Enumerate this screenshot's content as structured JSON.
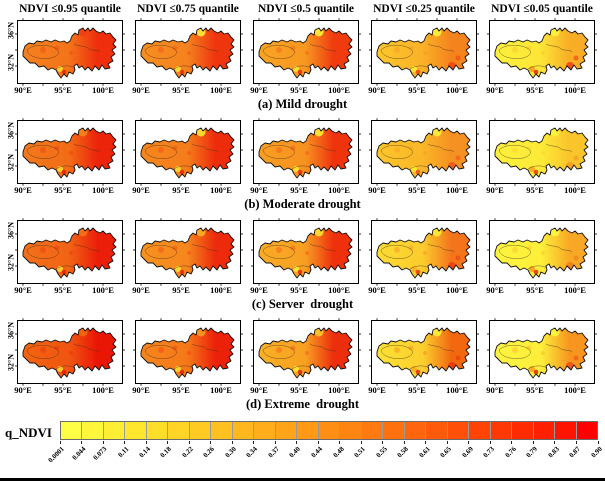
{
  "figure": {
    "column_headers": [
      "NDVI ≤0.95 quantile",
      "NDVI ≤0.75 quantile",
      "NDVI ≤0.5 quantile",
      "NDVI ≤0.25 quantile",
      "NDVI ≤0.05 quantile"
    ],
    "axes": {
      "x_ticks": [
        "90°E",
        "95°E",
        "100°E"
      ],
      "y_ticks": [
        "36°N",
        "32°N"
      ]
    },
    "rows": [
      {
        "caption": "(a) Mild drought",
        "panels": [
          {
            "west": "#F5821E",
            "mid": "#F4731A",
            "east": "#EE2E0C",
            "notch": "#F04012",
            "spot_yellow": "#FFD42E",
            "spot_red": "#E62D0B",
            "spot_se": "#EE2E0C"
          },
          {
            "west": "#F78E20",
            "mid": "#F5821E",
            "east": "#EF350E",
            "notch": "#FFE535",
            "spot_yellow": "#FFDC31",
            "spot_red": "#E7320D",
            "spot_se": "#EF350E"
          },
          {
            "west": "#F9A423",
            "mid": "#F79820",
            "east": "#F03B0F",
            "notch": "#FFEA37",
            "spot_yellow": "#FFE133",
            "spot_red": "#E9380E",
            "spot_se": "#F03B0F"
          },
          {
            "west": "#FCC72B",
            "mid": "#FAB027",
            "east": "#F4831D",
            "notch": "#FFEE39",
            "spot_yellow": "#FFE934",
            "spot_red": "#EE4D13",
            "spot_se": "#EF4511"
          },
          {
            "west": "#FDF13C",
            "mid": "#FCE536",
            "east": "#F7AD25",
            "notch": "#FDF13C",
            "spot_yellow": "#F8A122",
            "spot_red": "#E93A0F",
            "spot_se": "#ED4010"
          }
        ]
      },
      {
        "caption": "(b) Moderate drought",
        "panels": [
          {
            "west": "#F3791B",
            "mid": "#F26B16",
            "east": "#EC240A",
            "notch": "#F4821D",
            "spot_yellow": "#FFD42E",
            "spot_red": "#E52A0A",
            "spot_se": "#EC240A"
          },
          {
            "west": "#F6871E",
            "mid": "#F57D1B",
            "east": "#ED2C0B",
            "notch": "#FFE032",
            "spot_yellow": "#FFDB30",
            "spot_red": "#E6300C",
            "spot_se": "#ED2C0B"
          },
          {
            "west": "#F99E22",
            "mid": "#F79220",
            "east": "#EF340D",
            "notch": "#FFE634",
            "spot_yellow": "#FFE133",
            "spot_red": "#E8360E",
            "spot_se": "#EF340D"
          },
          {
            "west": "#FCC62B",
            "mid": "#FAB627",
            "east": "#F59122",
            "notch": "#FFEC37",
            "spot_yellow": "#FFE734",
            "spot_red": "#F0541A",
            "spot_se": "#F05318"
          },
          {
            "west": "#FDF03B",
            "mid": "#FCEA38",
            "east": "#FAC42B",
            "notch": "#FDF23D",
            "spot_yellow": "#F8AD25",
            "spot_red": "#EC4B12",
            "spot_se": "#F29A22"
          }
        ]
      },
      {
        "caption": "(c) Server  drought",
        "panels": [
          {
            "west": "#F3711A",
            "mid": "#F16315",
            "east": "#EB1F09",
            "notch": "#F3701A",
            "spot_yellow": "#FFD22E",
            "spot_red": "#E42909",
            "spot_se": "#EB1F09"
          },
          {
            "west": "#F7921F",
            "mid": "#F6861D",
            "east": "#ED2A0B",
            "notch": "#FAAD26",
            "spot_yellow": "#FFDC31",
            "spot_red": "#E62E0C",
            "spot_se": "#ED2A0B"
          },
          {
            "west": "#FAAC25",
            "mid": "#F89E22",
            "east": "#EE300C",
            "notch": "#FCDC33",
            "spot_yellow": "#FFE634",
            "spot_red": "#E8340D",
            "spot_se": "#EE300C"
          },
          {
            "west": "#FCDC33",
            "mid": "#FBCB2D",
            "east": "#F3741B",
            "notch": "#FDEB38",
            "spot_yellow": "#FAB027",
            "spot_red": "#ED4411",
            "spot_se": "#EF4010"
          },
          {
            "west": "#FDF43E",
            "mid": "#FDEF3A",
            "east": "#F8A824",
            "notch": "#FDF43E",
            "spot_yellow": "#F8A122",
            "spot_red": "#EB3F10",
            "spot_se": "#F07B1A"
          }
        ]
      },
      {
        "caption": "(d) Extreme  drought",
        "panels": [
          {
            "west": "#F2650F",
            "mid": "#F05511",
            "east": "#EA1605",
            "notch": "#F2650F",
            "spot_yellow": "#FFCF2D",
            "spot_red": "#E32306",
            "spot_se": "#EA1605"
          },
          {
            "west": "#F6861E",
            "mid": "#F57818",
            "east": "#EC2109",
            "notch": "#F7961F",
            "spot_yellow": "#FFDA30",
            "spot_red": "#E42A0A",
            "spot_se": "#EC2109"
          },
          {
            "west": "#FAB026",
            "mid": "#F8A021",
            "east": "#ED2E0C",
            "notch": "#FBC32A",
            "spot_yellow": "#FFE433",
            "spot_red": "#E7320D",
            "spot_se": "#ED2E0C"
          },
          {
            "west": "#FCE134",
            "mid": "#FBCF2E",
            "east": "#F2680F",
            "notch": "#FDEC38",
            "spot_yellow": "#FAB027",
            "spot_red": "#E8390F",
            "spot_se": "#EC350D"
          },
          {
            "west": "#FDF43F",
            "mid": "#FCEE3A",
            "east": "#F7951E",
            "notch": "#FDF43F",
            "spot_yellow": "#F8A822",
            "spot_red": "#E8390F",
            "spot_se": "#EE4D12"
          }
        ]
      }
    ],
    "colorbar": {
      "label": "q_NDVI",
      "ticks": [
        "0.0001",
        "0.044",
        "0.073",
        "0.11",
        "0.14",
        "0.18",
        "0.22",
        "0.26",
        "0.30",
        "0.34",
        "0.37",
        "0.40",
        "0.44",
        "0.48",
        "0.51",
        "0.55",
        "0.58",
        "0.61",
        "0.65",
        "0.69",
        "0.73",
        "0.76",
        "0.79",
        "0.83",
        "0.87",
        "0.90"
      ],
      "colors": [
        "#FFFF45",
        "#FFF73C",
        "#FFEF34",
        "#FFE72E",
        "#FFDE2A",
        "#FFD426",
        "#FFCB23",
        "#FFC120",
        "#FFB71D",
        "#FFAD1A",
        "#FFA318",
        "#FF9916",
        "#FF8F14",
        "#FF8512",
        "#FF7A10",
        "#FF700E",
        "#FF650C",
        "#FF5A0A",
        "#FF4F08",
        "#FF4406",
        "#FF3805",
        "#FF2C03",
        "#FF2002",
        "#FF1301",
        "#FF0000"
      ]
    }
  },
  "chart_data": {
    "type": "heatmap",
    "title": "Spatial patterns of NDVI quantiles (q_NDVI) under different drought levels",
    "columns": [
      "NDVI ≤0.95 quantile",
      "NDVI ≤0.75 quantile",
      "NDVI ≤0.5 quantile",
      "NDVI ≤0.25 quantile",
      "NDVI ≤0.05 quantile"
    ],
    "rows": [
      "(a) Mild drought",
      "(b) Moderate drought",
      "(c) Server  drought",
      "(d) Extreme  drought"
    ],
    "x_ticks": [
      "90°E",
      "95°E",
      "100°E"
    ],
    "y_ticks": [
      "36°N",
      "32°N"
    ],
    "colorbar": {
      "label": "q_NDVI",
      "min": 0.0001,
      "max": 0.9,
      "tick_values": [
        0.0001,
        0.044,
        0.073,
        0.11,
        0.14,
        0.18,
        0.22,
        0.26,
        0.3,
        0.34,
        0.37,
        0.4,
        0.44,
        0.48,
        0.51,
        0.55,
        0.58,
        0.61,
        0.65,
        0.69,
        0.73,
        0.76,
        0.79,
        0.83,
        0.87,
        0.9
      ]
    },
    "approx_q_ndvi_range_west_to_east_per_panel": [
      [
        [
          0.55,
          0.9
        ],
        [
          0.48,
          0.87
        ],
        [
          0.4,
          0.85
        ],
        [
          0.25,
          0.7
        ],
        [
          0.08,
          0.55
        ]
      ],
      [
        [
          0.58,
          0.9
        ],
        [
          0.5,
          0.88
        ],
        [
          0.42,
          0.85
        ],
        [
          0.26,
          0.65
        ],
        [
          0.07,
          0.45
        ]
      ],
      [
        [
          0.6,
          0.9
        ],
        [
          0.5,
          0.88
        ],
        [
          0.42,
          0.87
        ],
        [
          0.22,
          0.72
        ],
        [
          0.06,
          0.55
        ]
      ],
      [
        [
          0.65,
          0.9
        ],
        [
          0.52,
          0.88
        ],
        [
          0.4,
          0.87
        ],
        [
          0.2,
          0.8
        ],
        [
          0.05,
          0.75
        ]
      ]
    ],
    "legend_position": "bottom",
    "grid": false
  }
}
